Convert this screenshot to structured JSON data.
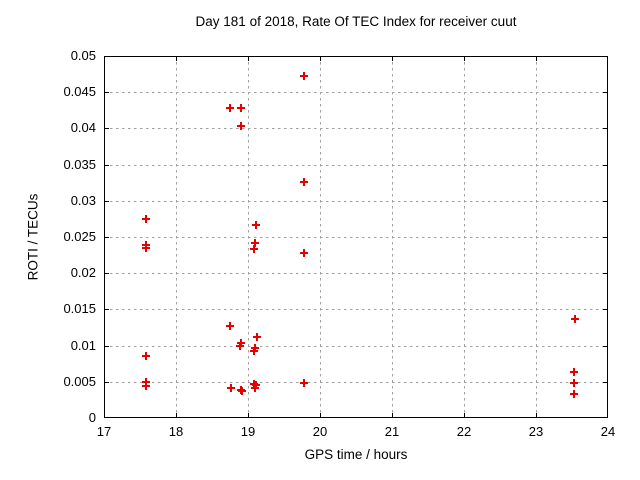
{
  "page": {
    "background": "#ffffff"
  },
  "colors": {
    "marker": "#e60000",
    "grid": "#a0a0a0",
    "border": "#000000",
    "text": "#000000"
  },
  "chart_data": {
    "type": "scatter",
    "title": "Day 181 of 2018, Rate Of TEC Index for receiver cuut",
    "xlabel": "GPS time / hours",
    "ylabel": "ROTI / TECUs",
    "xlim": [
      17,
      24
    ],
    "ylim": [
      0,
      0.05
    ],
    "xticks": [
      {
        "label": "17",
        "value": 17
      },
      {
        "label": "18",
        "value": 18
      },
      {
        "label": "19",
        "value": 19
      },
      {
        "label": "20",
        "value": 20
      },
      {
        "label": "21",
        "value": 21
      },
      {
        "label": "22",
        "value": 22
      },
      {
        "label": "23",
        "value": 23
      },
      {
        "label": "24",
        "value": 24
      }
    ],
    "yticks": [
      {
        "label": "0",
        "value": 0
      },
      {
        "label": "0.005",
        "value": 0.005
      },
      {
        "label": "0.01",
        "value": 0.01
      },
      {
        "label": "0.015",
        "value": 0.015
      },
      {
        "label": "0.02",
        "value": 0.02
      },
      {
        "label": "0.025",
        "value": 0.025
      },
      {
        "label": "0.03",
        "value": 0.03
      },
      {
        "label": "0.035",
        "value": 0.035
      },
      {
        "label": "0.04",
        "value": 0.04
      },
      {
        "label": "0.045",
        "value": 0.045
      },
      {
        "label": "0.05",
        "value": 0.05
      }
    ],
    "grid": true,
    "legend": "none",
    "series": [
      {
        "name": "ROTI",
        "marker": "plus",
        "color": "#e60000",
        "points": [
          [
            17.59,
            0.0275
          ],
          [
            17.59,
            0.0239
          ],
          [
            17.59,
            0.0235
          ],
          [
            17.59,
            0.0085
          ],
          [
            17.59,
            0.005
          ],
          [
            17.59,
            0.0044
          ],
          [
            18.75,
            0.0428
          ],
          [
            18.75,
            0.0127
          ],
          [
            18.76,
            0.0042
          ],
          [
            18.9,
            0.0428
          ],
          [
            18.9,
            0.0403
          ],
          [
            18.9,
            0.0104
          ],
          [
            18.89,
            0.01
          ],
          [
            18.9,
            0.0039
          ],
          [
            18.92,
            0.0037
          ],
          [
            19.11,
            0.0266
          ],
          [
            19.1,
            0.0242
          ],
          [
            19.08,
            0.0233
          ],
          [
            19.12,
            0.0112
          ],
          [
            19.1,
            0.0096
          ],
          [
            19.09,
            0.0092
          ],
          [
            19.09,
            0.0047
          ],
          [
            19.11,
            0.0045
          ],
          [
            19.1,
            0.0042
          ],
          [
            19.78,
            0.0472
          ],
          [
            19.78,
            0.0326
          ],
          [
            19.78,
            0.0228
          ],
          [
            19.78,
            0.0049
          ],
          [
            23.54,
            0.0137
          ],
          [
            23.53,
            0.0063
          ],
          [
            23.53,
            0.0049
          ],
          [
            23.53,
            0.0033
          ]
        ]
      }
    ]
  }
}
